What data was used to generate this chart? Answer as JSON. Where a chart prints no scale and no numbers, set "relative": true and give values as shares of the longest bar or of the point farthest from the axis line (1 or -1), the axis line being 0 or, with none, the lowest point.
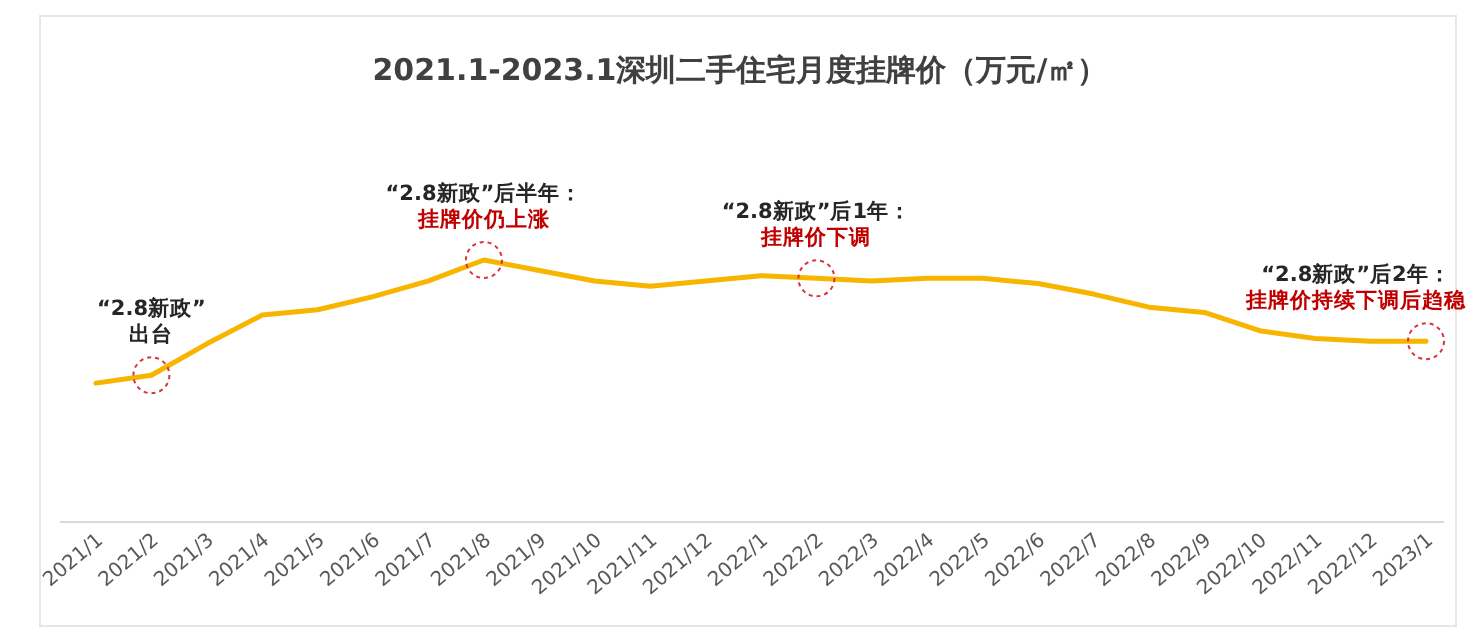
{
  "chart_data": {
    "type": "line",
    "title": "2021.1-2023.1深圳二手住宅月度挂牌价（万元/㎡）",
    "relative": true,
    "legend": false,
    "grid": false,
    "marker": "none",
    "line_style": "solid",
    "categories": [
      "2021/1",
      "2021/2",
      "2021/3",
      "2021/4",
      "2021/5",
      "2021/6",
      "2021/7",
      "2021/8",
      "2021/9",
      "2021/10",
      "2021/11",
      "2021/12",
      "2022/1",
      "2022/2",
      "2022/3",
      "2022/4",
      "2022/5",
      "2022/6",
      "2022/7",
      "2022/8",
      "2022/9",
      "2022/10",
      "2022/11",
      "2022/12",
      "2023/1"
    ],
    "series": [
      {
        "color": "#f7b500",
        "values": [
          0.53,
          0.56,
          0.68,
          0.79,
          0.81,
          0.86,
          0.92,
          1,
          0.96,
          0.92,
          0.9,
          0.92,
          0.94,
          0.93,
          0.92,
          0.93,
          0.93,
          0.91,
          0.87,
          0.82,
          0.8,
          0.73,
          0.7,
          0.69,
          0.69
        ]
      }
    ],
    "annotations": [
      {
        "text": "“2.8新政”",
        "x": "2021/2",
        "y": 0.56
      },
      {
        "text": "出台",
        "x": "2021/2",
        "y": 0.56
      },
      {
        "text": "“2.8新政”后半年：",
        "x": "2021/8",
        "y": 1
      },
      {
        "text": "挂牌价仍上涨",
        "x": "2021/8",
        "y": 1
      },
      {
        "text": "“2.8新政”后1年：",
        "x": "2022/2",
        "y": 0.93
      },
      {
        "text": "挂牌价下调",
        "x": "2022/2",
        "y": 0.93
      },
      {
        "text": "“2.8新政”后2年：",
        "x": "2023/1",
        "y": 0.69
      },
      {
        "text": "挂牌价持续下调后趋稳",
        "x": "2023/1",
        "y": 0.69
      }
    ]
  }
}
